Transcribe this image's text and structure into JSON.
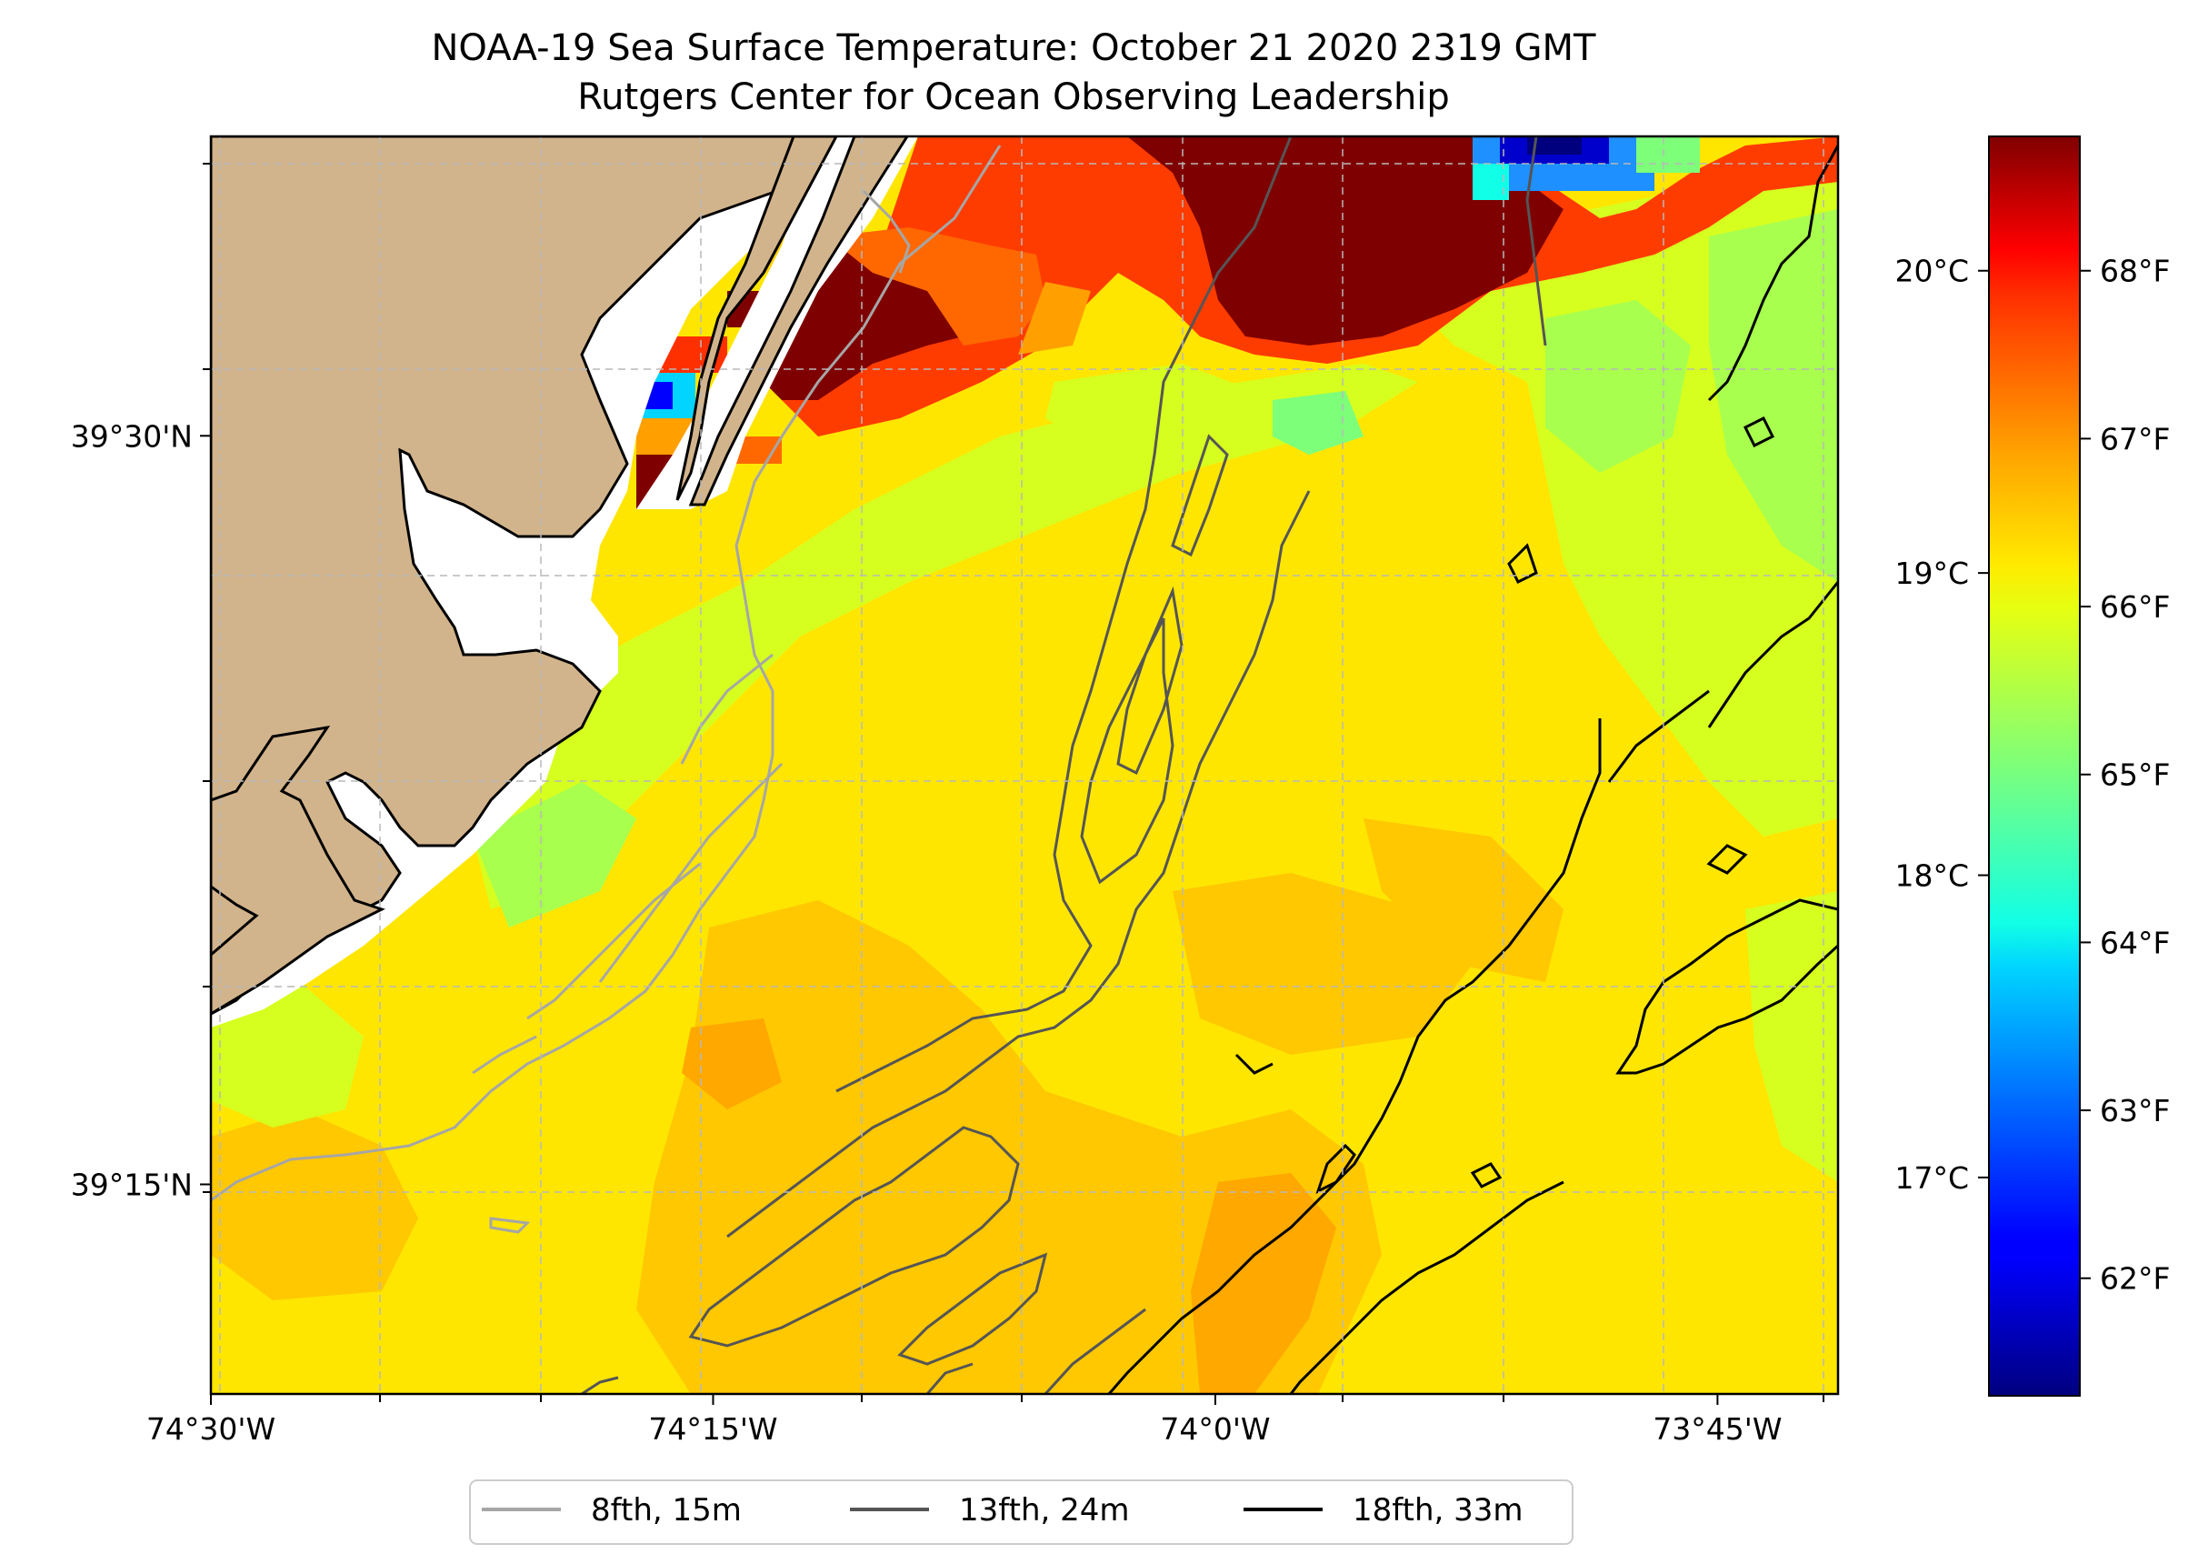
{
  "title": {
    "line1": "NOAA-19 Sea Surface Temperature: October 21 2020 2319 GMT",
    "line2": "Rutgers Center for Ocean Observing Leadership"
  },
  "map": {
    "lon_range": [
      -74.5,
      -73.69
    ],
    "lat_range": [
      39.18,
      39.6
    ],
    "x_ticks": [
      {
        "lon": -74.5,
        "label": "74°30'W"
      },
      {
        "lon": -74.25,
        "label": "74°15'W"
      },
      {
        "lon": -74.0,
        "label": "74°0'W"
      },
      {
        "lon": -73.75,
        "label": "73°45'W"
      }
    ],
    "y_ticks": [
      {
        "lat": 39.5,
        "label": "39°30'N"
      },
      {
        "lat": 39.25,
        "label": "39°15'N"
      }
    ],
    "grid": true,
    "colors": {
      "land": "#d2b48c",
      "coastline": "#000000",
      "grid": "#b8b8b8"
    }
  },
  "colorbar": {
    "colormap": "jet",
    "range_f": [
      61.3,
      68.8
    ],
    "celsius_ticks": [
      {
        "value": 20,
        "label": "20°C"
      },
      {
        "value": 19,
        "label": "19°C"
      },
      {
        "value": 18,
        "label": "18°C"
      },
      {
        "value": 17,
        "label": "17°C"
      }
    ],
    "fahrenheit_ticks": [
      {
        "value": 68,
        "label": "68°F"
      },
      {
        "value": 67,
        "label": "67°F"
      },
      {
        "value": 66,
        "label": "66°F"
      },
      {
        "value": 65,
        "label": "65°F"
      },
      {
        "value": 64,
        "label": "64°F"
      },
      {
        "value": 63,
        "label": "63°F"
      },
      {
        "value": 62,
        "label": "62°F"
      }
    ]
  },
  "legend": {
    "entries": [
      {
        "label": "8fth, 15m",
        "color": "#a6a6a6"
      },
      {
        "label": "13fth, 24m",
        "color": "#555555"
      },
      {
        "label": "18fth, 33m",
        "color": "#000000"
      }
    ]
  }
}
